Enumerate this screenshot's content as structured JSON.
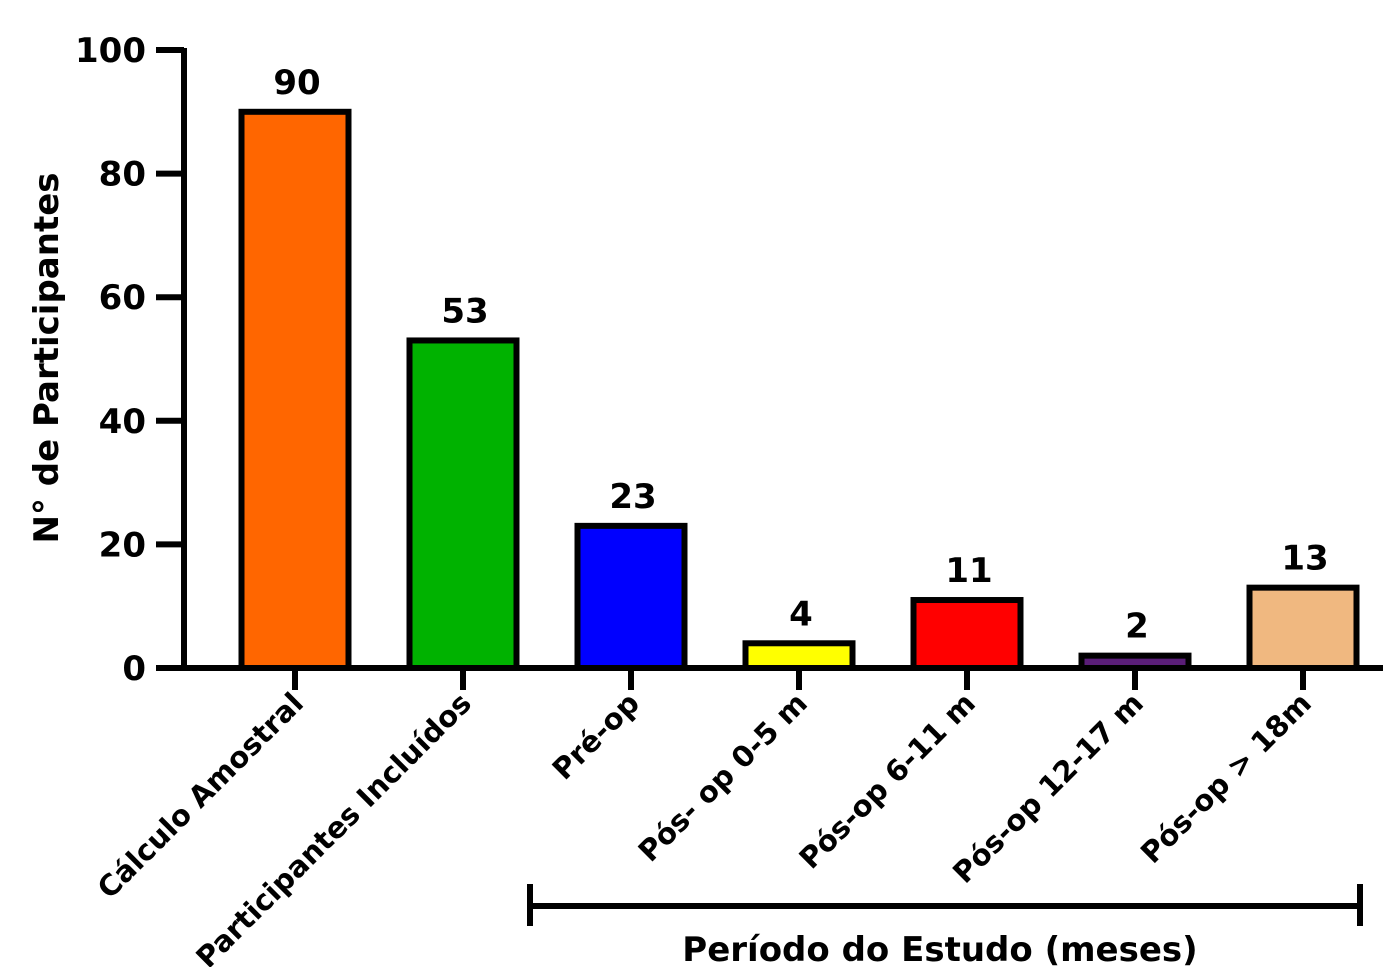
{
  "chart_data": {
    "type": "bar",
    "categories": [
      "Cálculo Amostral",
      "Participantes Incluídos",
      "Pré-op",
      "Pós- op 0-5 m",
      "Pós-op 6-11 m",
      "Pós-op 12-17 m",
      "Pós-op > 18m"
    ],
    "values": [
      90,
      53,
      23,
      4,
      11,
      2,
      13
    ],
    "data_labels": [
      "90",
      "53",
      "23",
      "4",
      "11",
      "2",
      "13"
    ],
    "colors": [
      "#FF6600",
      "#00B200",
      "#0000FF",
      "#FFFF00",
      "#FF0000",
      "#5A1E78",
      "#F0B880"
    ],
    "ylabel": "N° de Participantes",
    "yticks": [
      "0",
      "20",
      "40",
      "60",
      "80",
      "100"
    ],
    "ylim": [
      0,
      100
    ],
    "grid": false,
    "bracket": {
      "label": "Período do Estudo (meses)",
      "from_category": 2,
      "to_category": 6
    }
  }
}
